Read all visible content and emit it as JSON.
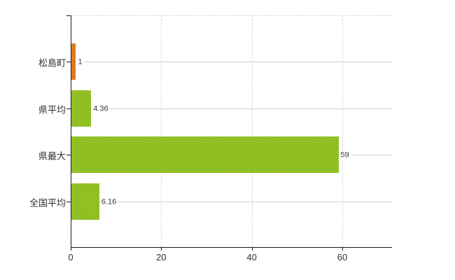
{
  "chart_data": {
    "type": "bar",
    "orientation": "horizontal",
    "title": "",
    "xlabel": "",
    "ylabel": "",
    "categories": [
      "松島町",
      "県平均",
      "県最大",
      "全国平均"
    ],
    "values": [
      1,
      4.36,
      59,
      6.16
    ],
    "value_labels": [
      "1",
      "4.36",
      "59",
      "6.16"
    ],
    "x_tick_labels": [
      "0",
      "20",
      "40",
      "60"
    ],
    "x_tick_values": [
      0,
      20,
      40,
      60
    ],
    "xlim": [
      0,
      71
    ],
    "grid": true,
    "legend": false,
    "bar_colors": [
      "#ec8523",
      "#9cc827",
      "#9cc827",
      "#9cc827"
    ],
    "bar_colors_alt": [
      "#d26f12",
      "#85b61f",
      "#85b61f",
      "#85b61f"
    ]
  },
  "colors": {
    "background": "#ffffff",
    "axis": "#1a1a1a",
    "grid_vertical": "#d9d9d9",
    "grid_horizontal": "#ccd3cb",
    "plot_top_border": "#d4d4d4",
    "label_text": "#303030",
    "value_text": "#3a3a3a"
  }
}
